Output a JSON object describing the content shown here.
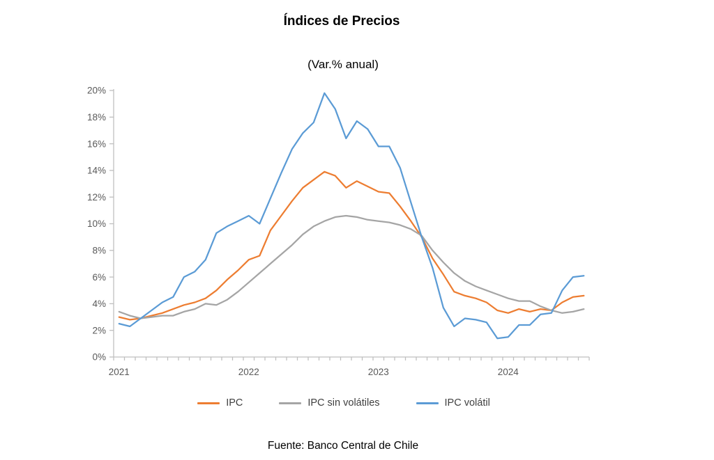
{
  "page": {
    "title": "Índices de Precios",
    "subtitle": "(Var.% anual)",
    "source": "Fuente: Banco Central de Chile"
  },
  "chart_data": {
    "type": "line",
    "title": "Índices de Precios",
    "subtitle": "(Var.% anual)",
    "x": [
      "2021-01",
      "2021-02",
      "2021-03",
      "2021-04",
      "2021-05",
      "2021-06",
      "2021-07",
      "2021-08",
      "2021-09",
      "2021-10",
      "2021-11",
      "2021-12",
      "2022-01",
      "2022-02",
      "2022-03",
      "2022-04",
      "2022-05",
      "2022-06",
      "2022-07",
      "2022-08",
      "2022-09",
      "2022-10",
      "2022-11",
      "2022-12",
      "2023-01",
      "2023-02",
      "2023-03",
      "2023-04",
      "2023-05",
      "2023-06",
      "2023-07",
      "2023-08",
      "2023-09",
      "2023-10",
      "2023-11",
      "2023-12",
      "2024-01",
      "2024-02",
      "2024-03",
      "2024-04",
      "2024-05",
      "2024-06",
      "2024-07",
      "2024-08"
    ],
    "series": [
      {
        "name": "IPC",
        "color": "#ED7D31",
        "values": [
          3.0,
          2.8,
          2.9,
          3.1,
          3.3,
          3.6,
          3.9,
          4.1,
          4.4,
          5.0,
          5.8,
          6.5,
          7.3,
          7.6,
          9.5,
          10.6,
          11.7,
          12.7,
          13.3,
          13.9,
          13.6,
          12.7,
          13.2,
          12.8,
          12.4,
          12.3,
          11.3,
          10.2,
          9.0,
          7.4,
          6.2,
          4.9,
          4.6,
          4.4,
          4.1,
          3.5,
          3.3,
          3.6,
          3.4,
          3.6,
          3.5,
          4.1,
          4.5,
          4.6
        ]
      },
      {
        "name": "IPC sin volátiles",
        "color": "#A5A5A5",
        "values": [
          3.4,
          3.1,
          2.9,
          3.0,
          3.1,
          3.1,
          3.4,
          3.6,
          4.0,
          3.9,
          4.3,
          4.9,
          5.6,
          6.3,
          7.0,
          7.7,
          8.4,
          9.2,
          9.8,
          10.2,
          10.5,
          10.6,
          10.5,
          10.3,
          10.2,
          10.1,
          9.9,
          9.6,
          9.1,
          8.0,
          7.1,
          6.3,
          5.7,
          5.3,
          5.0,
          4.7,
          4.4,
          4.2,
          4.2,
          3.8,
          3.5,
          3.3,
          3.4,
          3.6
        ]
      },
      {
        "name": "IPC volátil",
        "color": "#5B9BD5",
        "values": [
          2.5,
          2.3,
          2.9,
          3.5,
          4.1,
          4.5,
          6.0,
          6.4,
          7.3,
          9.3,
          9.8,
          10.2,
          10.6,
          10.0,
          11.9,
          13.8,
          15.6,
          16.8,
          17.6,
          19.8,
          18.6,
          16.4,
          17.7,
          17.1,
          15.8,
          15.8,
          14.2,
          11.6,
          9.0,
          6.7,
          3.7,
          2.3,
          2.9,
          2.8,
          2.6,
          1.4,
          1.5,
          2.4,
          2.4,
          3.2,
          3.3,
          5.0,
          6.0,
          6.1
        ]
      }
    ],
    "ylim": [
      0,
      20
    ],
    "y_tick_step": 2,
    "y_tick_labels": [
      "0%",
      "2%",
      "4%",
      "6%",
      "8%",
      "10%",
      "12%",
      "14%",
      "16%",
      "18%",
      "20%"
    ],
    "year_ticks": [
      {
        "label": "2021",
        "month_index": 0
      },
      {
        "label": "2022",
        "month_index": 12
      },
      {
        "label": "2023",
        "month_index": 24
      },
      {
        "label": "2024",
        "month_index": 36
      }
    ],
    "grid": false,
    "legend_position": "bottom",
    "axis_color": "#BFBFBF",
    "tick_label_color": "#595959",
    "xlabel": "",
    "ylabel": ""
  }
}
